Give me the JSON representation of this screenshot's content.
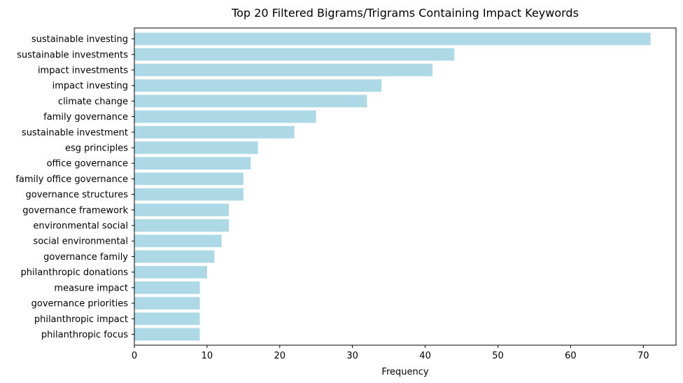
{
  "chart_data": {
    "type": "bar",
    "orientation": "horizontal",
    "title": "Top 20 Filtered Bigrams/Trigrams Containing Impact Keywords",
    "xlabel": "Frequency",
    "ylabel": "",
    "xlim": [
      0,
      74.5
    ],
    "xticks": [
      0,
      10,
      20,
      30,
      40,
      50,
      60,
      70
    ],
    "grid": false,
    "bar_color": "#add8e6",
    "categories": [
      "sustainable investing",
      "sustainable investments",
      "impact investments",
      "impact investing",
      "climate change",
      "family governance",
      "sustainable investment",
      "esg principles",
      "office governance",
      "family office governance",
      "governance structures",
      "governance framework",
      "environmental social",
      "social environmental",
      "governance family",
      "philanthropic donations",
      "measure impact",
      "governance priorities",
      "philanthropic impact",
      "philanthropic focus"
    ],
    "values": [
      71,
      44,
      41,
      34,
      32,
      25,
      22,
      17,
      16,
      15,
      15,
      13,
      13,
      12,
      11,
      10,
      9,
      9,
      9,
      9
    ]
  }
}
